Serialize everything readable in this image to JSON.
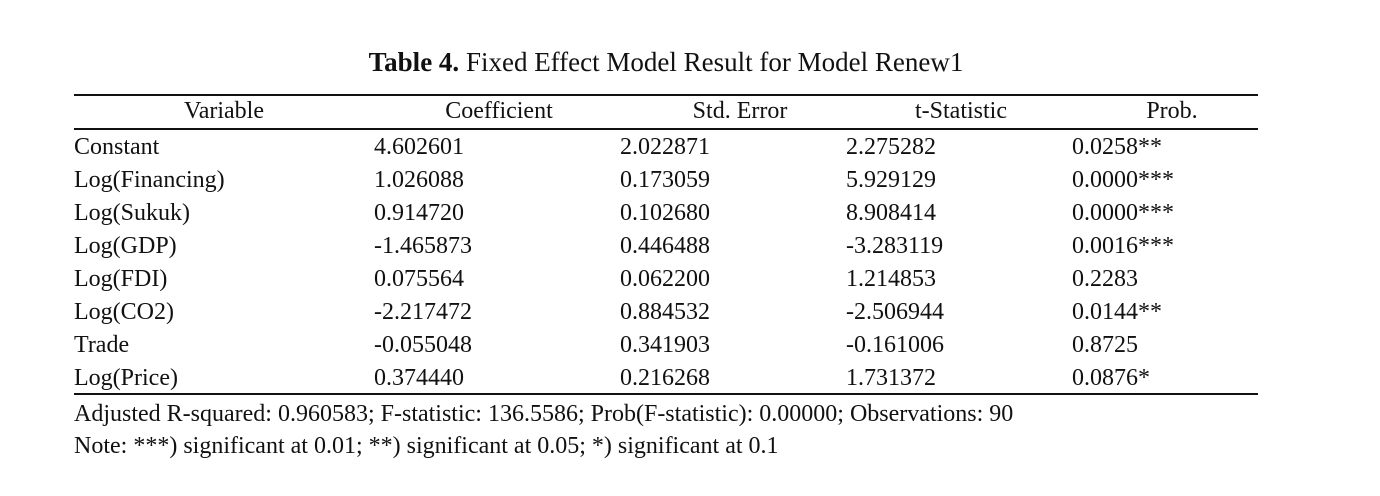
{
  "caption": {
    "label": "Table 4.",
    "text": "Fixed Effect Model Result for Model Renew1"
  },
  "table": {
    "headers": [
      "Variable",
      "Coefficient",
      "Std. Error",
      "t-Statistic",
      "Prob."
    ],
    "rows": [
      [
        "Constant",
        "4.602601",
        "2.022871",
        "2.275282",
        "0.0258**"
      ],
      [
        "Log(Financing)",
        "1.026088",
        "0.173059",
        "5.929129",
        "0.0000***"
      ],
      [
        "Log(Sukuk)",
        "0.914720",
        "0.102680",
        "8.908414",
        "0.0000***"
      ],
      [
        "Log(GDP)",
        "-1.465873",
        "0.446488",
        "-3.283119",
        "0.0016***"
      ],
      [
        "Log(FDI)",
        "0.075564",
        "0.062200",
        "1.214853",
        "0.2283"
      ],
      [
        "Log(CO2)",
        "-2.217472",
        "0.884532",
        "-2.506944",
        "0.0144**"
      ],
      [
        "Trade",
        "-0.055048",
        "0.341903",
        "-0.161006",
        "0.8725"
      ],
      [
        "Log(Price)",
        "0.374440",
        "0.216268",
        "1.731372",
        "0.0876*"
      ]
    ]
  },
  "footnotes": {
    "stats": "Adjusted R-squared: 0.960583; F-statistic: 136.5586; Prob(F-statistic): 0.00000; Observations:  90",
    "note": "Note: ***) significant at 0.01; **) significant at 0.05; *) significant at 0.1"
  }
}
